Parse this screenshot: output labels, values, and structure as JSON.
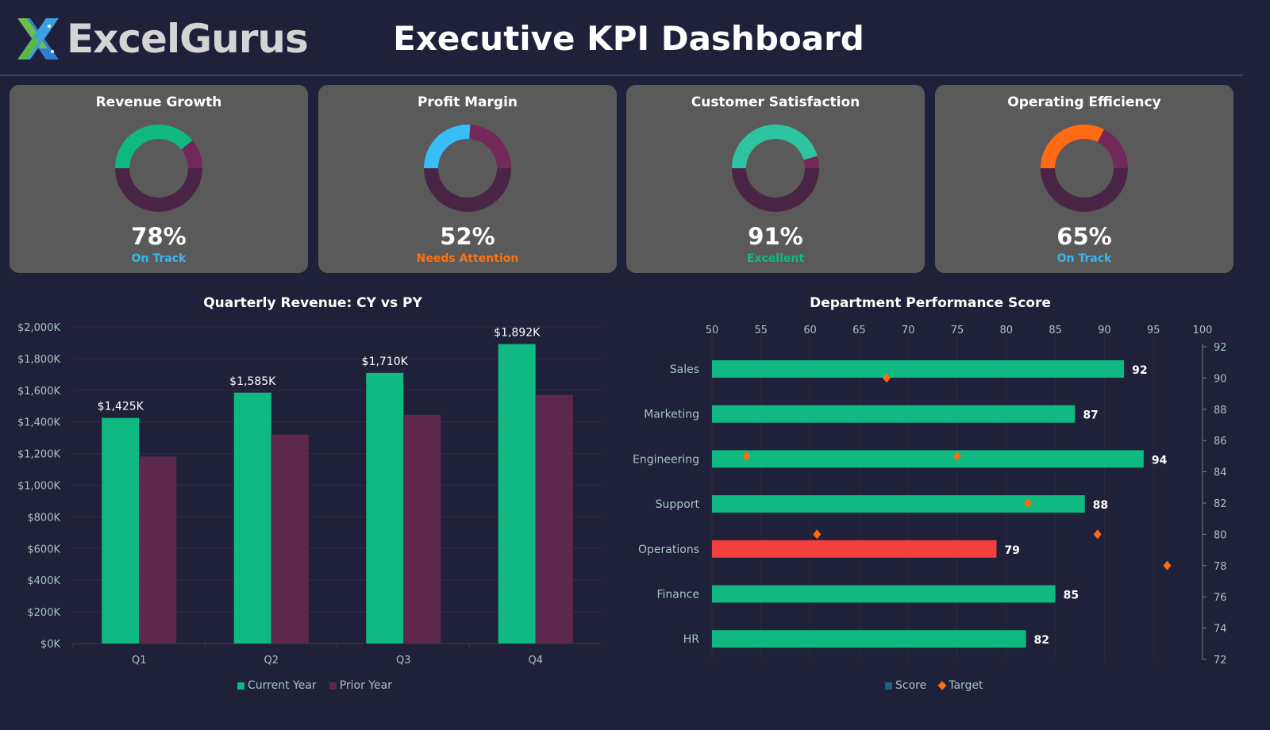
{
  "header": {
    "brand": "ExcelGurus",
    "title": "Executive KPI Dashboard"
  },
  "colors": {
    "background": "#1e2139",
    "card": "#5a5a5a",
    "remainder": "#722858",
    "hidden_half": "#4a2445",
    "cy": "#10b981",
    "py": "#5c284c",
    "bad": "#f43f3f",
    "target": "#ff6a13",
    "score_legend": "#1f5f8b"
  },
  "kpis": [
    {
      "title": "Revenue Growth",
      "value": "78%",
      "percent": 78,
      "status": "On Track",
      "color": "#10b981",
      "status_color": "#38b6f0"
    },
    {
      "title": "Profit Margin",
      "value": "52%",
      "percent": 52,
      "status": "Needs Attention",
      "color": "#38bdf8",
      "status_color": "#f97316"
    },
    {
      "title": "Customer Satisfaction",
      "value": "91%",
      "percent": 91,
      "status": "Excellent",
      "color": "#2ec4a0",
      "status_color": "#10b981"
    },
    {
      "title": "Operating Efficiency",
      "value": "65%",
      "percent": 65,
      "status": "On Track",
      "color": "#ff6a13",
      "status_color": "#38b6f0"
    }
  ],
  "chart_data": [
    {
      "type": "bar",
      "title": "Quarterly Revenue: CY vs PY",
      "categories": [
        "Q1",
        "Q2",
        "Q3",
        "Q4"
      ],
      "series": [
        {
          "name": "Current Year",
          "values": [
            1425,
            1585,
            1710,
            1892
          ],
          "labels": [
            "$1,425K",
            "$1,585K",
            "$1,710K",
            "$1,892K"
          ]
        },
        {
          "name": "Prior Year",
          "values": [
            1182,
            1320,
            1445,
            1570
          ]
        }
      ],
      "ylim": [
        0,
        2000
      ],
      "yticks": [
        "$0K",
        "$200K",
        "$400K",
        "$600K",
        "$800K",
        "$1,000K",
        "$1,200K",
        "$1,400K",
        "$1,600K",
        "$1,800K",
        "$2,000K"
      ],
      "grid": true,
      "legend": "bottom"
    },
    {
      "type": "bar",
      "orientation": "horizontal",
      "title": "Department Performance Score",
      "categories": [
        "Sales",
        "Marketing",
        "Engineering",
        "Support",
        "Operations",
        "Finance",
        "HR"
      ],
      "series": [
        {
          "name": "Score",
          "values": [
            92,
            87,
            94,
            88,
            79,
            85,
            82
          ]
        },
        {
          "name": "Target",
          "type": "scatter",
          "points": [
            [
              67.8,
              90
            ],
            [
              53.5,
              85
            ],
            [
              75,
              85
            ],
            [
              82.2,
              82
            ],
            [
              60.7,
              80
            ],
            [
              89.3,
              80
            ],
            [
              96.4,
              78
            ]
          ]
        }
      ],
      "xlim": [
        50,
        100
      ],
      "xticks": [
        "50",
        "55",
        "60",
        "65",
        "70",
        "75",
        "80",
        "85",
        "90",
        "95",
        "100"
      ],
      "y2lim": [
        72,
        92
      ],
      "y2ticks": [
        "72",
        "74",
        "76",
        "78",
        "80",
        "82",
        "84",
        "86",
        "88",
        "90",
        "92"
      ],
      "highlight_below": 80,
      "legend": "bottom"
    }
  ]
}
